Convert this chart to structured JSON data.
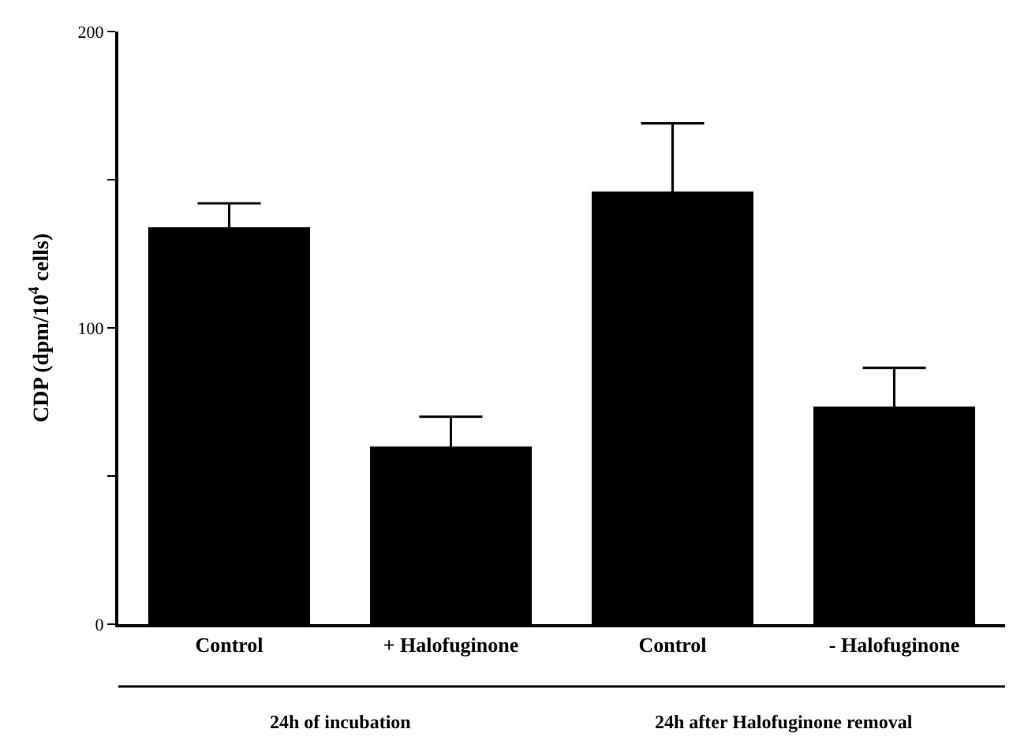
{
  "chart_data": {
    "type": "bar",
    "ylabel": "CDP (dpm/10$^{4}$ cells)",
    "categories": [
      "Control",
      "+ Halofuginone",
      "Control",
      "- Halofuginone"
    ],
    "values": [
      134,
      60,
      146,
      73.5
    ],
    "errors": [
      8,
      10,
      23,
      13
    ],
    "color": "#000000",
    "ylim": [
      0,
      200
    ],
    "yticks": [
      0,
      {
        "value": 50,
        "label": null
      },
      100,
      {
        "value": 150,
        "label": null
      },
      200
    ],
    "annotations": [
      "24h of incubation",
      "24h after Halofuginone removal"
    ]
  }
}
